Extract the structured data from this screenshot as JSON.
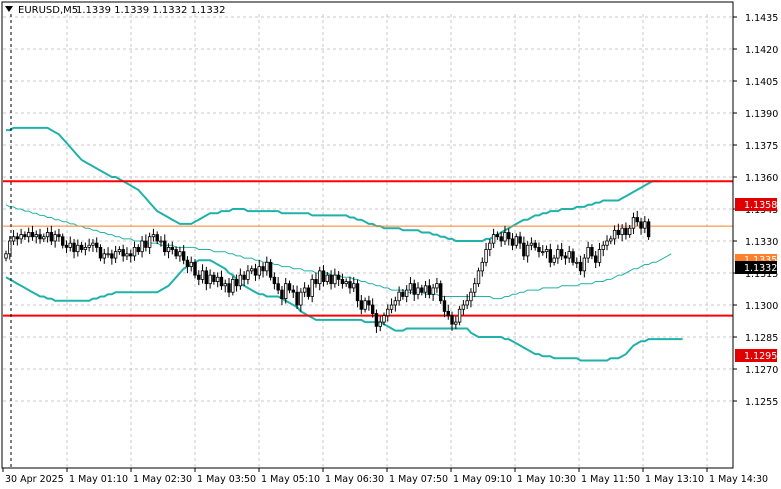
{
  "header": {
    "symbol_timeframe": "EURUSD,M5",
    "ohlc": "1.1339 1.1339 1.1332 1.1332",
    "dropdown_icon": "triangle-down-icon"
  },
  "colors": {
    "background": "#ffffff",
    "grid": "#c8c8c8",
    "axis": "#000000",
    "bullish_candle": "#ffffff",
    "bearish_candle": "#000000",
    "candle_outline": "#000000",
    "bollinger": "#20b2aa",
    "level_line": "#ff0000",
    "bid_line": "#ff7f2a",
    "current_price_label": "#000000",
    "level_label": "#e00000"
  },
  "chart_data": {
    "type": "candlestick",
    "title": "EURUSD,M5",
    "ylim": [
      1.125,
      1.1445
    ],
    "y_ticks": [
      "1.1435",
      "1.1420",
      "1.1405",
      "1.1390",
      "1.1375",
      "1.1360",
      "1.1345",
      "1.1330",
      "1.1315",
      "1.1300",
      "1.1285",
      "1.1270",
      "1.1255"
    ],
    "x_ticks": [
      "30 Apr 2025",
      "1 May 01:10",
      "1 May 02:30",
      "1 May 03:50",
      "1 May 05:10",
      "1 May 06:30",
      "1 May 07:50",
      "1 May 09:10",
      "1 May 10:30",
      "1 May 11:50",
      "1 May 13:10",
      "1 May 14:30"
    ],
    "grid": true,
    "horizontal_levels": [
      {
        "value": 1.1358,
        "label": "1.1358"
      },
      {
        "value": 1.1295,
        "label": "1.1295"
      }
    ],
    "bid_line": {
      "value": 1.1337
    },
    "current_price": {
      "value": 1.1332,
      "label": "1.1332"
    },
    "hidden_labels": [
      "1.1335"
    ],
    "candles": {
      "start_x": 6,
      "step": 3.78,
      "ylim": [
        1.125,
        1.1445
      ],
      "ytop": 0,
      "ybot": 1,
      "closes": [
        1.1324,
        1.133,
        1.1332,
        1.1331,
        1.1333,
        1.1332,
        1.1334,
        1.1332,
        1.1333,
        1.1331,
        1.1332,
        1.1334,
        1.133,
        1.1333,
        1.1332,
        1.1328,
        1.1327,
        1.1329,
        1.1325,
        1.1328,
        1.1326,
        1.1327,
        1.1328,
        1.1329,
        1.1327,
        1.1322,
        1.1324,
        1.1324,
        1.1322,
        1.1325,
        1.1326,
        1.1323,
        1.1324,
        1.1323,
        1.1327,
        1.1325,
        1.133,
        1.1327,
        1.1332,
        1.1333,
        1.133,
        1.133,
        1.1325,
        1.1327,
        1.1326,
        1.1323,
        1.1325,
        1.1321,
        1.1318,
        1.132,
        1.1314,
        1.1312,
        1.1316,
        1.131,
        1.1314,
        1.1311,
        1.1313,
        1.1309,
        1.131,
        1.1306,
        1.1312,
        1.1309,
        1.1314,
        1.1312,
        1.1316,
        1.1317,
        1.1314,
        1.1318,
        1.1316,
        1.132,
        1.1313,
        1.131,
        1.1307,
        1.1303,
        1.131,
        1.1307,
        1.1306,
        1.13,
        1.1306,
        1.1308,
        1.1304,
        1.1312,
        1.131,
        1.1316,
        1.1311,
        1.1314,
        1.131,
        1.1314,
        1.1312,
        1.131,
        1.1311,
        1.1308,
        1.131,
        1.1302,
        1.1298,
        1.1302,
        1.13,
        1.1296,
        1.129,
        1.1292,
        1.1295,
        1.1298,
        1.13,
        1.1302,
        1.1306,
        1.1304,
        1.1307,
        1.131,
        1.1305,
        1.1308,
        1.1306,
        1.1309,
        1.1305,
        1.1308,
        1.131,
        1.1302,
        1.1297,
        1.1295,
        1.1291,
        1.1292,
        1.1298,
        1.13,
        1.1302,
        1.1306,
        1.131,
        1.1316,
        1.132,
        1.1326,
        1.1329,
        1.1333,
        1.1332,
        1.133,
        1.1334,
        1.1331,
        1.1328,
        1.1332,
        1.1329,
        1.1323,
        1.1328,
        1.1329,
        1.1327,
        1.1325,
        1.1325,
        1.1326,
        1.132,
        1.1322,
        1.1326,
        1.1323,
        1.1322,
        1.1325,
        1.132,
        1.132,
        1.1316,
        1.1322,
        1.1327,
        1.1323,
        1.132,
        1.1326,
        1.1328,
        1.133,
        1.1331,
        1.1335,
        1.1333,
        1.1336,
        1.1333,
        1.1336,
        1.1341,
        1.1339,
        1.1336,
        1.1339,
        1.1332
      ]
    },
    "bollinger_upper": {
      "start_x": 6,
      "step": 3.78,
      "values": [
        1.1382,
        1.1382,
        1.1383,
        1.1383,
        1.1383,
        1.1383,
        1.1383,
        1.1383,
        1.1383,
        1.1383,
        1.1383,
        1.1383,
        1.1382,
        1.1381,
        1.138,
        1.1378,
        1.1376,
        1.1374,
        1.1372,
        1.137,
        1.1368,
        1.1367,
        1.1366,
        1.1365,
        1.1364,
        1.1363,
        1.1362,
        1.1361,
        1.136,
        1.136,
        1.1359,
        1.1358,
        1.1357,
        1.1356,
        1.1355,
        1.1354,
        1.1352,
        1.135,
        1.1348,
        1.1346,
        1.1344,
        1.1343,
        1.1342,
        1.1341,
        1.134,
        1.1339,
        1.1338,
        1.1338,
        1.1338,
        1.1338,
        1.1339,
        1.134,
        1.1341,
        1.1342,
        1.1343,
        1.1343,
        1.1343,
        1.1344,
        1.1344,
        1.1344,
        1.1345,
        1.1345,
        1.1345,
        1.1345,
        1.1344,
        1.1344,
        1.1344,
        1.1344,
        1.1344,
        1.1344,
        1.1344,
        1.1344,
        1.1344,
        1.1343,
        1.1343,
        1.1343,
        1.1343,
        1.1343,
        1.1343,
        1.1343,
        1.1343,
        1.1342,
        1.1342,
        1.1342,
        1.1342,
        1.1342,
        1.1342,
        1.1342,
        1.1342,
        1.1342,
        1.1342,
        1.1341,
        1.1341,
        1.134,
        1.134,
        1.1339,
        1.1338,
        1.1338,
        1.1337,
        1.1337,
        1.1336,
        1.1336,
        1.1336,
        1.1336,
        1.1336,
        1.1335,
        1.1335,
        1.1335,
        1.1335,
        1.1335,
        1.1334,
        1.1334,
        1.1334,
        1.1333,
        1.1333,
        1.1332,
        1.1332,
        1.1331,
        1.1331,
        1.133,
        1.133,
        1.133,
        1.133,
        1.133,
        1.133,
        1.133,
        1.133,
        1.1331,
        1.1331,
        1.1332,
        1.1333,
        1.1334,
        1.1335,
        1.1336,
        1.1337,
        1.1338,
        1.1339,
        1.134,
        1.134,
        1.1341,
        1.1342,
        1.1342,
        1.1343,
        1.1343,
        1.1344,
        1.1344,
        1.1344,
        1.1345,
        1.1345,
        1.1345,
        1.1345,
        1.1346,
        1.1346,
        1.1346,
        1.1347,
        1.1347,
        1.1348,
        1.1348,
        1.1349,
        1.1349,
        1.1349,
        1.1349,
        1.1349,
        1.135,
        1.1351,
        1.1352,
        1.1353,
        1.1354,
        1.1355,
        1.1356,
        1.1357,
        1.1358,
        1.1358,
        1.1358
      ]
    },
    "bollinger_middle": {
      "start_x": 6,
      "step": 3.78,
      "values": [
        1.1347,
        1.1346,
        1.1346,
        1.1345,
        1.1345,
        1.1344,
        1.1344,
        1.1343,
        1.1343,
        1.1342,
        1.1342,
        1.1341,
        1.1341,
        1.134,
        1.134,
        1.1339,
        1.1339,
        1.1338,
        1.1338,
        1.1337,
        1.1337,
        1.1336,
        1.1336,
        1.1335,
        1.1335,
        1.1334,
        1.1334,
        1.1333,
        1.1333,
        1.1332,
        1.1332,
        1.1331,
        1.1331,
        1.1331,
        1.133,
        1.133,
        1.133,
        1.1329,
        1.1329,
        1.1329,
        1.1329,
        1.1328,
        1.1328,
        1.1328,
        1.1328,
        1.1327,
        1.1327,
        1.1327,
        1.1327,
        1.1327,
        1.1327,
        1.1326,
        1.1326,
        1.1326,
        1.1326,
        1.1325,
        1.1325,
        1.1325,
        1.1325,
        1.1324,
        1.1324,
        1.1323,
        1.1323,
        1.1322,
        1.1322,
        1.1322,
        1.1321,
        1.1321,
        1.132,
        1.132,
        1.132,
        1.1319,
        1.1319,
        1.1318,
        1.1318,
        1.1318,
        1.1317,
        1.1317,
        1.1317,
        1.1316,
        1.1316,
        1.1316,
        1.1315,
        1.1315,
        1.1315,
        1.1315,
        1.1314,
        1.1314,
        1.1314,
        1.1313,
        1.1313,
        1.1313,
        1.1312,
        1.1312,
        1.1311,
        1.1311,
        1.131,
        1.131,
        1.1309,
        1.1309,
        1.1308,
        1.1308,
        1.1307,
        1.1307,
        1.1307,
        1.1307,
        1.1306,
        1.1306,
        1.1306,
        1.1306,
        1.1306,
        1.1305,
        1.1305,
        1.1305,
        1.1305,
        1.1304,
        1.1304,
        1.1304,
        1.1304,
        1.1304,
        1.1304,
        1.1304,
        1.1304,
        1.1304,
        1.1304,
        1.1304,
        1.1304,
        1.1304,
        1.1304,
        1.1303,
        1.1303,
        1.1303,
        1.1304,
        1.1304,
        1.1305,
        1.1305,
        1.1306,
        1.1306,
        1.1307,
        1.1307,
        1.1307,
        1.1307,
        1.1308,
        1.1308,
        1.1308,
        1.1308,
        1.1308,
        1.1309,
        1.1309,
        1.1309,
        1.1309,
        1.1309,
        1.131,
        1.131,
        1.131,
        1.131,
        1.1311,
        1.1311,
        1.1311,
        1.1312,
        1.1312,
        1.1313,
        1.1314,
        1.1314,
        1.1315,
        1.1316,
        1.1317,
        1.1317,
        1.1318,
        1.1319,
        1.1319,
        1.132,
        1.132,
        1.1321,
        1.1322,
        1.1323,
        1.1324
      ]
    },
    "bollinger_lower": {
      "start_x": 6,
      "step": 3.78,
      "values": [
        1.1313,
        1.1312,
        1.1311,
        1.131,
        1.1309,
        1.1308,
        1.1307,
        1.1306,
        1.1305,
        1.1304,
        1.1304,
        1.1303,
        1.1303,
        1.1302,
        1.1302,
        1.1302,
        1.1302,
        1.1302,
        1.1302,
        1.1302,
        1.1302,
        1.1302,
        1.1302,
        1.1303,
        1.1303,
        1.1304,
        1.1304,
        1.1305,
        1.1305,
        1.1306,
        1.1306,
        1.1306,
        1.1306,
        1.1306,
        1.1306,
        1.1306,
        1.1306,
        1.1306,
        1.1306,
        1.1306,
        1.1306,
        1.1307,
        1.1308,
        1.1309,
        1.1311,
        1.1313,
        1.1315,
        1.1317,
        1.1318,
        1.1319,
        1.132,
        1.1321,
        1.1321,
        1.1321,
        1.1321,
        1.132,
        1.1319,
        1.1318,
        1.1317,
        1.1315,
        1.1314,
        1.1312,
        1.131,
        1.1309,
        1.1308,
        1.1307,
        1.1306,
        1.1305,
        1.1305,
        1.1304,
        1.1304,
        1.1304,
        1.1304,
        1.1303,
        1.1302,
        1.1301,
        1.13,
        1.1299,
        1.1297,
        1.1296,
        1.1295,
        1.1294,
        1.1293,
        1.1293,
        1.1293,
        1.1293,
        1.1293,
        1.1293,
        1.1293,
        1.1293,
        1.1293,
        1.1293,
        1.1293,
        1.1293,
        1.1293,
        1.1292,
        1.1292,
        1.1292,
        1.1292,
        1.1292,
        1.1291,
        1.129,
        1.1289,
        1.1288,
        1.1288,
        1.1288,
        1.1289,
        1.1289,
        1.1289,
        1.1289,
        1.1289,
        1.1289,
        1.1289,
        1.1289,
        1.1289,
        1.1289,
        1.1289,
        1.1289,
        1.1289,
        1.1289,
        1.1289,
        1.1289,
        1.1289,
        1.1287,
        1.1286,
        1.1285,
        1.1285,
        1.1285,
        1.1285,
        1.1285,
        1.1285,
        1.1285,
        1.1284,
        1.1284,
        1.1283,
        1.1282,
        1.1281,
        1.128,
        1.1279,
        1.1278,
        1.1277,
        1.1277,
        1.1276,
        1.1276,
        1.1276,
        1.1275,
        1.1275,
        1.1275,
        1.1275,
        1.1275,
        1.1275,
        1.1275,
        1.1274,
        1.1274,
        1.1274,
        1.1274,
        1.1274,
        1.1274,
        1.1274,
        1.1274,
        1.1275,
        1.1275,
        1.1275,
        1.1276,
        1.1277,
        1.1279,
        1.1281,
        1.1282,
        1.1283,
        1.1283,
        1.1284,
        1.1284,
        1.1284,
        1.1284,
        1.1284,
        1.1284,
        1.1284,
        1.1284,
        1.1284,
        1.1284
      ]
    }
  }
}
